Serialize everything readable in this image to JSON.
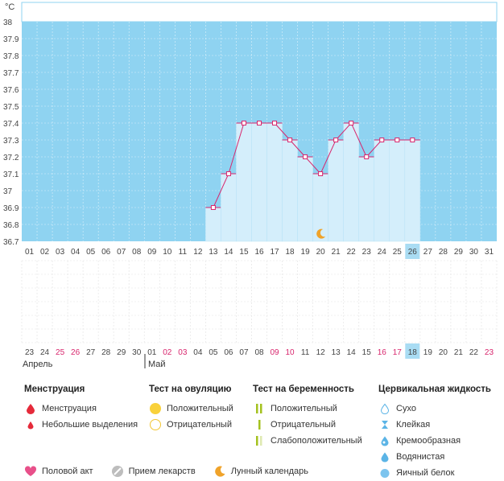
{
  "chart_data": {
    "type": "line",
    "unit": "°C",
    "ylim": [
      36.7,
      38.0
    ],
    "yticks": [
      "38",
      "37.9",
      "37.8",
      "37.7",
      "37.6",
      "37.5",
      "37.4",
      "37.3",
      "37.2",
      "37.1",
      "37",
      "36.9",
      "36.8",
      "36.7"
    ],
    "cycle_days": [
      "01",
      "02",
      "03",
      "04",
      "05",
      "06",
      "07",
      "08",
      "09",
      "10",
      "11",
      "12",
      "13",
      "14",
      "15",
      "16",
      "17",
      "18",
      "19",
      "20",
      "21",
      "22",
      "23",
      "24",
      "25",
      "26",
      "27",
      "28",
      "29",
      "30",
      "31"
    ],
    "current_cycle_day": "26",
    "temperature_start_index": 12,
    "temperatures": [
      36.9,
      37.1,
      37.4,
      37.4,
      37.4,
      37.3,
      37.2,
      37.1,
      37.3,
      37.4,
      37.2,
      37.3,
      37.3,
      37.3
    ],
    "moon_marker_day_index": 19,
    "calendar_dates": [
      "23",
      "24",
      "25",
      "26",
      "27",
      "28",
      "29",
      "30",
      "01",
      "02",
      "03",
      "04",
      "05",
      "06",
      "07",
      "08",
      "09",
      "10",
      "11",
      "12",
      "13",
      "14",
      "15",
      "16",
      "17",
      "18",
      "19",
      "20",
      "21",
      "22",
      "23"
    ],
    "calendar_date_highlight": [
      false,
      false,
      true,
      true,
      false,
      false,
      false,
      false,
      false,
      true,
      true,
      false,
      false,
      false,
      false,
      false,
      true,
      true,
      false,
      false,
      false,
      false,
      false,
      true,
      true,
      false,
      false,
      false,
      false,
      false,
      true
    ],
    "current_date_index": 25,
    "months": [
      {
        "label": "Апрель",
        "start_index": 0
      },
      {
        "label": "Май",
        "start_index": 8
      }
    ]
  },
  "colors": {
    "background_blue": "#8fd3f1",
    "column_fill": "#d4eefb",
    "line": "#d8266d",
    "highlight_red": "#d8266d",
    "current_box": "#a9dcf3"
  },
  "legend": {
    "menstruation": {
      "title": "Менструация",
      "items": [
        {
          "label": "Менструация",
          "icon": "red-drop-icon"
        },
        {
          "label": "Небольшие выделения",
          "icon": "small-red-drop-icon"
        }
      ]
    },
    "ovulation": {
      "title": "Тест на овуляцию",
      "items": [
        {
          "label": "Положительный",
          "icon": "yellow-filled-circle-icon"
        },
        {
          "label": "Отрицательный",
          "icon": "yellow-outline-circle-icon"
        }
      ]
    },
    "pregnancy": {
      "title": "Тест на беременность",
      "items": [
        {
          "label": "Положительный",
          "icon": "two-green-bars-icon"
        },
        {
          "label": "Отрицательный",
          "icon": "one-green-bar-icon"
        },
        {
          "label": "Слабоположительный",
          "icon": "faint-second-bar-icon"
        }
      ]
    },
    "cervical": {
      "title": "Цервикальная жидкость",
      "items": [
        {
          "label": "Сухо",
          "icon": "outline-drop-icon"
        },
        {
          "label": "Клейкая",
          "icon": "sticky-icon"
        },
        {
          "label": "Кремообразная",
          "icon": "creamy-drop-icon"
        },
        {
          "label": "Водянистая",
          "icon": "watery-drop-icon"
        },
        {
          "label": "Яичный белок",
          "icon": "egg-white-drop-icon"
        }
      ]
    }
  },
  "bottom_legend": [
    {
      "label": "Половой акт",
      "icon": "heart-icon"
    },
    {
      "label": "Прием лекарств",
      "icon": "pill-icon"
    },
    {
      "label": "Лунный календарь",
      "icon": "moon-icon"
    }
  ]
}
